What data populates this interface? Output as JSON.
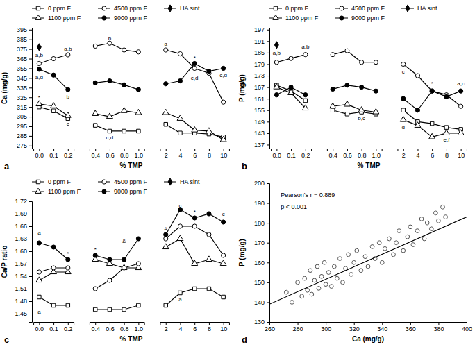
{
  "chart_data": [
    {
      "type": "line",
      "label": "a",
      "x_label": "% TMP",
      "y_label": "Ca (mg/g)",
      "categories": [
        "0.0",
        "0.1",
        "0.2",
        "0.4",
        "0.6",
        "0.8",
        "1.0",
        "2",
        "4",
        "6",
        "8",
        "10"
      ],
      "segments": [
        3,
        4,
        5
      ],
      "ylim": [
        272,
        397
      ],
      "yticks": [
        275,
        285,
        295,
        305,
        315,
        325,
        335,
        345,
        355,
        365,
        375,
        385,
        395
      ],
      "series": [
        {
          "name": "0 ppm F",
          "color": "#000000",
          "marker": "square-open",
          "line_style": "solid",
          "values": [
            315,
            311,
            303,
            296,
            290,
            290,
            290,
            297,
            288,
            288,
            287,
            284
          ]
        },
        {
          "name": "1100 ppm F",
          "color": "#000000",
          "marker": "triangle-open",
          "line_style": "solid",
          "values": [
            318,
            316,
            306,
            308,
            305,
            311,
            309,
            309,
            303,
            291,
            290,
            281
          ]
        },
        {
          "name": "4500 ppm F",
          "color": "#000000",
          "marker": "circle-open",
          "line_style": "solid",
          "values": [
            360,
            365,
            369,
            378,
            381,
            374,
            372,
            374,
            370,
            355,
            350,
            320
          ]
        },
        {
          "name": "9000 ppm F",
          "color": "#000000",
          "marker": "circle",
          "line_style": "solid",
          "values": [
            354,
            348,
            333,
            340,
            342,
            338,
            333,
            339,
            342,
            360,
            352,
            355
          ]
        },
        {
          "name": "HA sint",
          "color": "#000000",
          "marker": "diamond",
          "line_style": "none",
          "values": [
            377,
            null,
            null,
            null,
            null,
            null,
            null,
            null,
            null,
            null,
            null,
            null
          ]
        }
      ],
      "annotations": [
        {
          "text": "*",
          "x": 0,
          "y": 325
        },
        {
          "text": "a,b",
          "x": 0,
          "y": 369
        },
        {
          "text": "a,d",
          "x": 0,
          "y": 346
        },
        {
          "text": "a,b",
          "x": 2,
          "y": 375
        },
        {
          "text": "b",
          "x": 2,
          "y": 326
        },
        {
          "text": "c",
          "x": 2,
          "y": 298
        },
        {
          "text": "b",
          "x": 4,
          "y": 386
        },
        {
          "text": "c,d",
          "x": 4,
          "y": 283
        },
        {
          "text": "a",
          "x": 7,
          "y": 380
        },
        {
          "text": "*",
          "x": 9,
          "y": 366
        },
        {
          "text": "c,d",
          "x": 9,
          "y": 345
        },
        {
          "text": "c,d",
          "x": 11,
          "y": 348
        }
      ]
    },
    {
      "type": "line",
      "label": "b",
      "x_label": "% TMP",
      "y_label": "P (mg/g)",
      "categories": [
        "0.0",
        "0.1",
        "0.2",
        "0.4",
        "0.6",
        "0.8",
        "1.0",
        "2",
        "4",
        "6",
        "8",
        "10"
      ],
      "segments": [
        3,
        4,
        5
      ],
      "ylim": [
        135,
        198
      ],
      "yticks": [
        137,
        143,
        149,
        155,
        161,
        167,
        173,
        179,
        185,
        191,
        197
      ],
      "series": [
        {
          "name": "0 ppm F",
          "color": "#000000",
          "marker": "square-open",
          "line_style": "solid",
          "values": [
            168,
            165,
            160,
            155,
            153,
            154,
            153,
            155,
            149,
            148,
            146,
            145
          ]
        },
        {
          "name": "1100 ppm F",
          "color": "#000000",
          "marker": "triangle-open",
          "line_style": "solid",
          "values": [
            167,
            164,
            156,
            157,
            158,
            155,
            154,
            150,
            147,
            141,
            143,
            143
          ]
        },
        {
          "name": "4500 ppm F",
          "color": "#000000",
          "marker": "circle-open",
          "line_style": "solid",
          "values": [
            180,
            182,
            184,
            184,
            186,
            180,
            180,
            179,
            173,
            165,
            163,
            157
          ]
        },
        {
          "name": "9000 ppm F",
          "color": "#000000",
          "marker": "circle",
          "line_style": "solid",
          "values": [
            163,
            167,
            163,
            166,
            168,
            167,
            165,
            161,
            155,
            165,
            162,
            165
          ]
        },
        {
          "name": "HA sint",
          "color": "#000000",
          "marker": "diamond",
          "line_style": "none",
          "values": [
            189,
            null,
            null,
            null,
            null,
            null,
            null,
            null,
            null,
            null,
            null,
            null
          ]
        }
      ],
      "annotations": [
        {
          "text": "a,b",
          "x": 0,
          "y": 185
        },
        {
          "text": "a,b",
          "x": 2,
          "y": 188
        },
        {
          "text": "b,c",
          "x": 5,
          "y": 151
        },
        {
          "text": "c",
          "x": 7,
          "y": 175
        },
        {
          "text": "d",
          "x": 7,
          "y": 146
        },
        {
          "text": "*",
          "x": 9,
          "y": 169
        },
        {
          "text": "e,f",
          "x": 10,
          "y": 139.5
        },
        {
          "text": "a,c",
          "x": 11,
          "y": 169
        }
      ]
    },
    {
      "type": "line",
      "label": "c",
      "x_label": "% TMP",
      "y_label": "Ca/P ratio",
      "categories": [
        "0.0",
        "0.1",
        "0.2",
        "0.4",
        "0.6",
        "0.8",
        "1.0",
        "2",
        "4",
        "6",
        "8",
        "10"
      ],
      "segments": [
        3,
        4,
        5
      ],
      "ylim": [
        1.43,
        1.72
      ],
      "yticks": [
        1.45,
        1.48,
        1.51,
        1.54,
        1.57,
        {
          "value": 1.6,
          "label": "1.60"
        },
        1.63,
        1.66,
        1.69,
        1.72
      ],
      "series": [
        {
          "name": "0 ppm F",
          "color": "#000000",
          "marker": "square-open",
          "line_style": "solid",
          "values": [
            1.49,
            1.47,
            1.47,
            1.46,
            1.46,
            1.46,
            1.47,
            1.47,
            1.5,
            1.51,
            1.51,
            1.49
          ]
        },
        {
          "name": "1100 ppm F",
          "color": "#000000",
          "marker": "triangle-open",
          "line_style": "solid",
          "values": [
            1.53,
            1.55,
            1.55,
            1.58,
            1.57,
            1.56,
            1.56,
            1.61,
            1.63,
            1.57,
            1.58,
            1.57
          ]
        },
        {
          "name": "4500 ppm F",
          "color": "#000000",
          "marker": "circle-open",
          "line_style": "solid",
          "values": [
            1.55,
            1.56,
            1.56,
            1.51,
            1.53,
            1.56,
            1.57,
            1.63,
            1.66,
            1.66,
            1.64,
            1.59
          ]
        },
        {
          "name": "9000 ppm F",
          "color": "#000000",
          "marker": "circle",
          "line_style": "solid",
          "values": [
            1.62,
            1.61,
            1.58,
            1.59,
            1.58,
            1.58,
            1.63,
            1.64,
            1.7,
            1.68,
            1.69,
            1.67
          ]
        },
        {
          "name": "HA sint",
          "color": "#000000",
          "marker": "diamond",
          "line_style": "none",
          "values": [
            null,
            null,
            null,
            null,
            null,
            null,
            null,
            null,
            null,
            null,
            null,
            null
          ]
        }
      ],
      "annotations": [
        {
          "text": "a",
          "x": 0,
          "y": 1.645
        },
        {
          "text": "a",
          "x": 0,
          "y": 1.455
        },
        {
          "text": "*",
          "x": 2,
          "y": 1.595
        },
        {
          "text": "*",
          "x": 3,
          "y": 1.605
        },
        {
          "text": "&",
          "x": 5,
          "y": 1.625
        },
        {
          "text": "#",
          "x": 7,
          "y": 1.655
        },
        {
          "text": "c",
          "x": 8,
          "y": 1.71
        },
        {
          "text": "*",
          "x": 9,
          "y": 1.695
        },
        {
          "text": "c",
          "x": 11,
          "y": 1.69
        },
        {
          "text": "a",
          "x": 8,
          "y": 1.485
        }
      ]
    },
    {
      "type": "scatter",
      "label": "d",
      "x_label": "Ca (mg/g)",
      "y_label": "P (mg/g)",
      "xlim": [
        260,
        400
      ],
      "xticks": [
        260,
        280,
        300,
        320,
        340,
        360,
        380,
        400
      ],
      "ylim": [
        130,
        200
      ],
      "yticks": [
        130,
        140,
        150,
        160,
        170,
        180,
        190,
        200
      ],
      "marker": "circle-open",
      "color": "#555555",
      "x": [
        272,
        276,
        280,
        283,
        285,
        287,
        289,
        290,
        292,
        294,
        295,
        297,
        299,
        300,
        302,
        304,
        306,
        308,
        310,
        312,
        314,
        316,
        318,
        320,
        322,
        325,
        328,
        330,
        333,
        335,
        338,
        340,
        342,
        345,
        348,
        350,
        352,
        355,
        358,
        360,
        362,
        365,
        368,
        370,
        372,
        375,
        378,
        380,
        383,
        385
      ],
      "y": [
        145,
        140,
        150,
        143,
        152,
        146,
        156,
        144,
        151,
        158,
        147,
        153,
        160,
        149,
        155,
        148,
        158,
        152,
        162,
        150,
        157,
        164,
        154,
        160,
        166,
        156,
        163,
        158,
        168,
        162,
        170,
        160,
        167,
        172,
        164,
        170,
        176,
        166,
        173,
        178,
        169,
        176,
        182,
        172,
        180,
        177,
        185,
        181,
        188,
        183
      ],
      "fit": {
        "x": [
          260,
          400
        ],
        "y": [
          139,
          183
        ]
      },
      "annotations": [
        {
          "text": "Pearson's r = 0.889",
          "x": 268,
          "y": 194
        },
        {
          "text": "p < 0.001",
          "x": 268,
          "y": 188
        }
      ]
    }
  ]
}
